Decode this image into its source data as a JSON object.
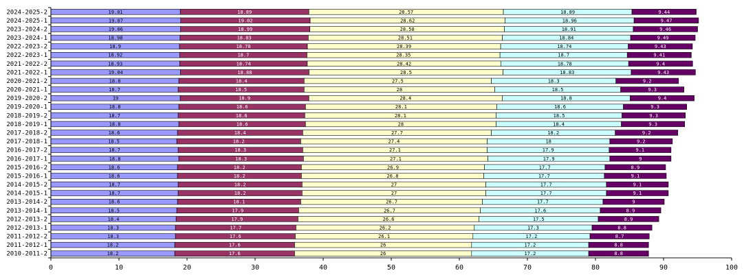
{
  "chart_data": {
    "type": "bar",
    "orientation": "horizontal",
    "stacked": true,
    "title": "",
    "xlabel": "",
    "ylabel": "",
    "xlim": [
      0,
      100
    ],
    "xticks": [
      0,
      10,
      20,
      30,
      40,
      50,
      60,
      70,
      80,
      90,
      100
    ],
    "grid": false,
    "legend": "none",
    "categories": [
      "2024-2025-2",
      "2024-2025-1",
      "2023-2024-2",
      "2023-2024-1",
      "2022-2023-2",
      "2022-2023-1",
      "2021-2022-2",
      "2021-2022-1",
      "2020-2021-2",
      "2020-2021-1",
      "2019-2020-2",
      "2019-2020-1",
      "2018-2019-2",
      "2018-2019-1",
      "2017-2018-2",
      "2017-2018-1",
      "2016-2017-2",
      "2016-2017-1",
      "2015-2016-2",
      "2015-2016-1",
      "2014-2015-2",
      "2014-2015-1",
      "2013-2014-2",
      "2013-2014-1",
      "2012-2013-2",
      "2012-2013-1",
      "2011-2012-2",
      "2011-2012-1",
      "2010-2011-2"
    ],
    "series": [
      {
        "color": "#9999ff",
        "values": [
          19.01,
          19.07,
          19.06,
          18.98,
          18.9,
          18.92,
          18.93,
          19.04,
          18.8,
          18.7,
          19,
          18.8,
          18.7,
          18.8,
          18.6,
          18.5,
          18.7,
          18.8,
          18.6,
          18.6,
          18.7,
          18.7,
          18.6,
          18.5,
          18.4,
          18.3,
          18.3,
          18.2,
          18.2
        ]
      },
      {
        "color": "#993366",
        "values": [
          18.89,
          19.02,
          18.99,
          18.83,
          18.78,
          18.7,
          18.74,
          18.88,
          18.4,
          18.5,
          18.9,
          18.6,
          18.6,
          18.6,
          18.4,
          18.2,
          18.3,
          18.3,
          18.2,
          18.2,
          18.2,
          18.2,
          18.1,
          17.9,
          17.9,
          17.7,
          17.6,
          17.6,
          17.6
        ]
      },
      {
        "color": "#ffffcc",
        "values": [
          28.57,
          28.62,
          28.58,
          28.51,
          28.39,
          28.35,
          28.42,
          28.5,
          27.5,
          28,
          28.4,
          28.1,
          28.1,
          28,
          27.7,
          27.4,
          27.1,
          27.1,
          26.9,
          26.8,
          27,
          27,
          26.7,
          26.7,
          26.6,
          26.2,
          26.1,
          26,
          26
        ]
      },
      {
        "color": "#ccffff",
        "values": [
          18.89,
          18.96,
          18.91,
          18.84,
          18.74,
          18.7,
          18.78,
          18.83,
          18.3,
          18.5,
          18.8,
          18.6,
          18.5,
          18.4,
          18.2,
          18,
          17.9,
          17.9,
          17.7,
          17.7,
          17.7,
          17.7,
          17.7,
          17.6,
          17.5,
          17.3,
          17.2,
          17.2,
          17.2
        ]
      },
      {
        "color": "#660066",
        "values": [
          9.44,
          9.47,
          9.46,
          9.49,
          9.43,
          9.41,
          9.4,
          9.43,
          9.2,
          9.3,
          9.4,
          9.3,
          9.3,
          9.3,
          9.2,
          9.2,
          9.1,
          9,
          8.9,
          9.1,
          9.1,
          9.1,
          9,
          8.9,
          8.9,
          8.8,
          8.7,
          8.8,
          8.8
        ]
      }
    ]
  }
}
